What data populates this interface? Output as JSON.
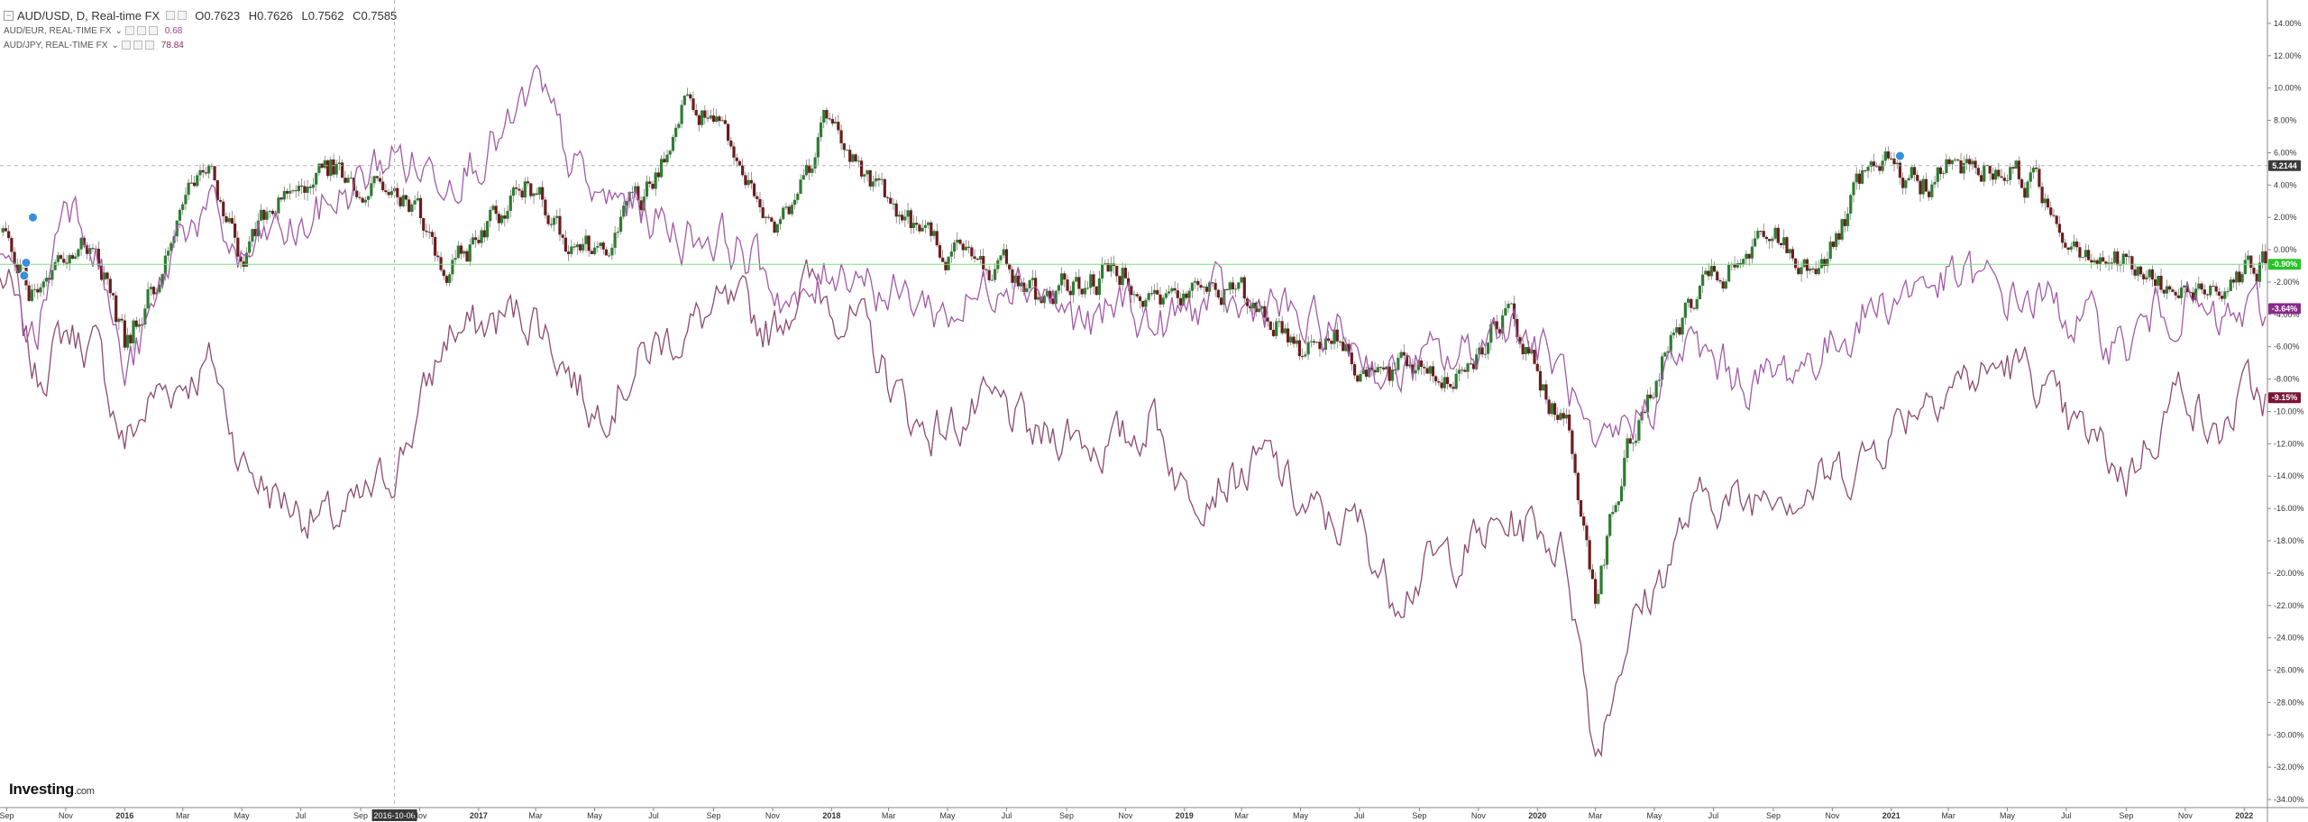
{
  "header": {
    "main_symbol": "AUD/USD, D, Real-time FX",
    "ohlc": [
      {
        "k": "O",
        "v": "0.7623"
      },
      {
        "k": "H",
        "v": "0.7626"
      },
      {
        "k": "L",
        "v": "0.7562"
      },
      {
        "k": "C",
        "v": "0.7585"
      }
    ],
    "compare": [
      {
        "symbol": "AUD/EUR, REAL-TIME FX",
        "value": "0.68"
      },
      {
        "symbol": "AUD/JPY, REAL-TIME FX",
        "value": "78.84"
      }
    ]
  },
  "logo": {
    "text": "Investing",
    "suffix": ".com"
  },
  "colors": {
    "aud_eur": "#a25aa7",
    "aud_jpy": "#8e4a6f",
    "candle_up": "#2e7d32",
    "candle_down": "#6b1d1d",
    "zero_line": "#7ddc7d",
    "crosshair": "#b0b0b0"
  },
  "chart_data": {
    "type": "line",
    "description_units": "percent change from start",
    "x_axis_labels": [
      "Sep",
      "Nov",
      "2016",
      "Mar",
      "May",
      "Jul",
      "Sep",
      "Nov",
      "2017",
      "Mar",
      "May",
      "Jul",
      "Sep",
      "Nov",
      "2018",
      "Mar",
      "May",
      "Jul",
      "Sep",
      "Nov",
      "2019",
      "Mar",
      "May",
      "Jul",
      "Sep",
      "Nov",
      "2020",
      "Mar",
      "May",
      "Jul",
      "Sep",
      "Nov",
      "2021",
      "Mar",
      "May",
      "Jul",
      "Sep",
      "Nov",
      "2022"
    ],
    "x_axis_dates": [
      "2015-09",
      "2015-11",
      "2016-01",
      "2016-03",
      "2016-05",
      "2016-07",
      "2016-09",
      "2016-11",
      "2017-01",
      "2017-03",
      "2017-05",
      "2017-07",
      "2017-09",
      "2017-11",
      "2018-01",
      "2018-03",
      "2018-05",
      "2018-07",
      "2018-09",
      "2018-11",
      "2019-01",
      "2019-03",
      "2019-05",
      "2019-07",
      "2019-09",
      "2019-11",
      "2020-01",
      "2020-03",
      "2020-05",
      "2020-07",
      "2020-09",
      "2020-11",
      "2021-01",
      "2021-03",
      "2021-05",
      "2021-07",
      "2021-09",
      "2021-11",
      "2022-01"
    ],
    "crosshair_date_label": "2016-10-06",
    "y_ticks": [
      14,
      12,
      10,
      8,
      6,
      4,
      2,
      0,
      -2,
      -4,
      -6,
      -8,
      -10,
      -12,
      -14,
      -16,
      -18,
      -20,
      -22,
      -24,
      -26,
      -28,
      -30,
      -32,
      -34
    ],
    "y_tick_labels": [
      "14.00%",
      "12.00%",
      "10.00%",
      "8.00%",
      "6.00%",
      "4.00%",
      "2.00%",
      "0.00%",
      "-2.00%",
      "-4.00%",
      "-6.00%",
      "-8.00%",
      "-10.00%",
      "-12.00%",
      "-14.00%",
      "-16.00%",
      "-18.00%",
      "-20.00%",
      "-22.00%",
      "-24.00%",
      "-26.00%",
      "-28.00%",
      "-30.00%",
      "-32.00%",
      "-34.00%"
    ],
    "ylim": [
      -34.5,
      15
    ],
    "badges": [
      {
        "label": "5.2144",
        "value": 5.2,
        "color": "#3a3a3a"
      },
      {
        "label": "-0.90%",
        "value": -0.9,
        "color": "#27c427"
      },
      {
        "label": "-3.64%",
        "value": -3.64,
        "color": "#8a2a8a"
      },
      {
        "label": "-9.15%",
        "value": -9.15,
        "color": "#7a1535"
      }
    ],
    "series": [
      {
        "name": "AUD/USD",
        "style": "candles",
        "x": [
          "2015-09",
          "2015-10",
          "2015-11",
          "2015-12",
          "2016-01",
          "2016-02",
          "2016-03",
          "2016-04",
          "2016-05",
          "2016-06",
          "2016-07",
          "2016-08",
          "2016-09",
          "2016-10",
          "2016-11",
          "2016-12",
          "2017-01",
          "2017-02",
          "2017-03",
          "2017-04",
          "2017-05",
          "2017-06",
          "2017-07",
          "2017-08",
          "2017-09",
          "2017-10",
          "2017-11",
          "2017-12",
          "2018-01",
          "2018-02",
          "2018-03",
          "2018-04",
          "2018-05",
          "2018-06",
          "2018-07",
          "2018-08",
          "2018-09",
          "2018-10",
          "2018-11",
          "2018-12",
          "2019-01",
          "2019-02",
          "2019-03",
          "2019-04",
          "2019-05",
          "2019-06",
          "2019-07",
          "2019-08",
          "2019-09",
          "2019-10",
          "2019-11",
          "2019-12",
          "2020-01",
          "2020-02",
          "2020-03",
          "2020-04",
          "2020-05",
          "2020-06",
          "2020-07",
          "2020-08",
          "2020-09",
          "2020-10",
          "2020-11",
          "2020-12",
          "2021-01",
          "2021-02",
          "2021-03",
          "2021-04",
          "2021-05",
          "2021-06",
          "2021-07",
          "2021-08",
          "2021-09",
          "2021-10",
          "2021-11",
          "2021-12",
          "2022-01"
        ],
        "values": [
          1,
          -3,
          -1,
          1,
          -6,
          -2,
          4,
          5,
          -1,
          3,
          4,
          5,
          3,
          4,
          2,
          -2,
          1,
          3,
          4,
          1,
          0,
          2,
          4,
          9,
          8,
          4,
          1,
          4,
          9,
          5,
          3,
          1,
          0,
          -1,
          -1,
          -3,
          -2,
          -2,
          -1,
          -3,
          -3,
          -2,
          -3,
          -4,
          -6,
          -5,
          -7,
          -8,
          -7,
          -8,
          -6,
          -4,
          -8,
          -11,
          -21,
          -13,
          -8,
          -4,
          -2,
          -1,
          1,
          -1,
          0,
          4,
          5,
          4,
          5,
          5,
          5,
          4,
          1,
          0,
          -1,
          -2,
          -3,
          -2,
          -1
        ]
      },
      {
        "name": "AUD/EUR",
        "style": "line",
        "x": [
          "2015-09",
          "2015-10",
          "2015-11",
          "2015-12",
          "2016-01",
          "2016-02",
          "2016-03",
          "2016-04",
          "2016-05",
          "2016-06",
          "2016-07",
          "2016-08",
          "2016-09",
          "2016-10",
          "2016-11",
          "2016-12",
          "2017-01",
          "2017-02",
          "2017-03",
          "2017-04",
          "2017-05",
          "2017-06",
          "2017-07",
          "2017-08",
          "2017-09",
          "2017-10",
          "2017-11",
          "2017-12",
          "2018-01",
          "2018-02",
          "2018-03",
          "2018-04",
          "2018-05",
          "2018-06",
          "2018-07",
          "2018-08",
          "2018-09",
          "2018-10",
          "2018-11",
          "2018-12",
          "2019-01",
          "2019-02",
          "2019-03",
          "2019-04",
          "2019-05",
          "2019-06",
          "2019-07",
          "2019-08",
          "2019-09",
          "2019-10",
          "2019-11",
          "2019-12",
          "2020-01",
          "2020-02",
          "2020-03",
          "2020-04",
          "2020-05",
          "2020-06",
          "2020-07",
          "2020-08",
          "2020-09",
          "2020-10",
          "2020-11",
          "2020-12",
          "2021-01",
          "2021-02",
          "2021-03",
          "2021-04",
          "2021-05",
          "2021-06",
          "2021-07",
          "2021-08",
          "2021-09",
          "2021-10",
          "2021-11",
          "2021-12",
          "2022-01"
        ],
        "values": [
          -1,
          -6,
          4,
          1,
          -8,
          -4,
          2,
          2,
          -1,
          1,
          1,
          3,
          4,
          6,
          5,
          5,
          6,
          7,
          10,
          6,
          3,
          3,
          2,
          1,
          1,
          0,
          -2,
          -4,
          -1,
          -1,
          -3,
          -3,
          -4,
          -3,
          -1,
          -2,
          -4,
          -5,
          -3,
          -5,
          -4,
          -3,
          -4,
          -3,
          -5,
          -5,
          -6,
          -8,
          -7,
          -7,
          -6,
          -4,
          -6,
          -8,
          -14,
          -11,
          -9,
          -6,
          -7,
          -8,
          -8,
          -7,
          -6,
          -4,
          -3,
          -2,
          -2,
          -2,
          -3,
          -3,
          -4,
          -5,
          -6,
          -4,
          -3,
          -5,
          -4
        ]
      },
      {
        "name": "AUD/JPY",
        "style": "line",
        "x": [
          "2015-09",
          "2015-10",
          "2015-11",
          "2015-12",
          "2016-01",
          "2016-02",
          "2016-03",
          "2016-04",
          "2016-05",
          "2016-06",
          "2016-07",
          "2016-08",
          "2016-09",
          "2016-10",
          "2016-11",
          "2016-12",
          "2017-01",
          "2017-02",
          "2017-03",
          "2017-04",
          "2017-05",
          "2017-06",
          "2017-07",
          "2017-08",
          "2017-09",
          "2017-10",
          "2017-11",
          "2017-12",
          "2018-01",
          "2018-02",
          "2018-03",
          "2018-04",
          "2018-05",
          "2018-06",
          "2018-07",
          "2018-08",
          "2018-09",
          "2018-10",
          "2018-11",
          "2018-12",
          "2019-01",
          "2019-02",
          "2019-03",
          "2019-04",
          "2019-05",
          "2019-06",
          "2019-07",
          "2019-08",
          "2019-09",
          "2019-10",
          "2019-11",
          "2019-12",
          "2020-01",
          "2020-02",
          "2020-03",
          "2020-04",
          "2020-05",
          "2020-06",
          "2020-07",
          "2020-08",
          "2020-09",
          "2020-10",
          "2020-11",
          "2020-12",
          "2021-01",
          "2021-02",
          "2021-03",
          "2021-04",
          "2021-05",
          "2021-06",
          "2021-07",
          "2021-08",
          "2021-09",
          "2021-10",
          "2021-11",
          "2021-12",
          "2022-01"
        ],
        "values": [
          -2,
          -8,
          -5,
          -6,
          -12,
          -9,
          -8,
          -7,
          -13,
          -15,
          -16,
          -17,
          -16,
          -14,
          -10,
          -5,
          -5,
          -4,
          -4,
          -7,
          -10,
          -8,
          -6,
          -5,
          -4,
          -4,
          -5,
          -2,
          -3,
          -5,
          -8,
          -11,
          -11,
          -10,
          -10,
          -12,
          -11,
          -12,
          -12,
          -10,
          -15,
          -14,
          -14,
          -13,
          -16,
          -17,
          -17,
          -21,
          -20,
          -19,
          -18,
          -17,
          -17,
          -19,
          -31,
          -24,
          -21,
          -17,
          -15,
          -16,
          -14,
          -15,
          -14,
          -13,
          -11,
          -9,
          -8,
          -8,
          -7,
          -8,
          -11,
          -12,
          -14,
          -11,
          -8,
          -12,
          -9
        ]
      }
    ]
  }
}
